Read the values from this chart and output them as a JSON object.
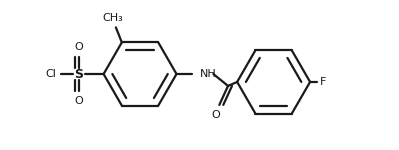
{
  "background_color": "#ffffff",
  "line_color": "#1a1a1a",
  "line_width": 1.6,
  "fig_width": 3.99,
  "fig_height": 1.5,
  "dpi": 100,
  "xlim": [
    0,
    10
  ],
  "ylim": [
    0,
    3.75
  ]
}
